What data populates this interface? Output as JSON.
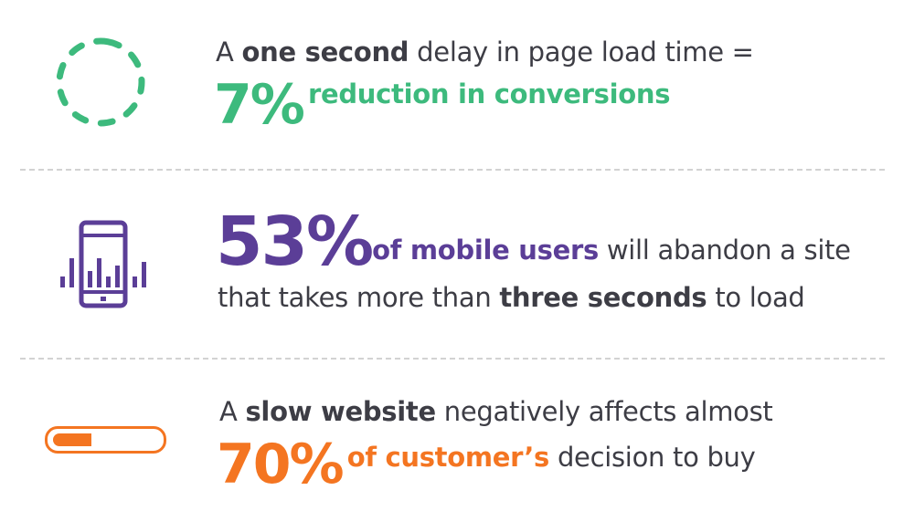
{
  "colors": {
    "green": "#3dba7d",
    "purple": "#5b3e97",
    "orange": "#f47521",
    "text": "#3d3d45",
    "divider": "#d2d2d2"
  },
  "stats": [
    {
      "icon": "dashed-circle-loading-icon",
      "line1": {
        "pre": "A ",
        "bold": "one second",
        "post": " delay in page load time ="
      },
      "line2": {
        "figure": "7%",
        "highlight": "reduction in conversions"
      }
    },
    {
      "icon": "mobile-phone-signal-icon",
      "line1": {
        "figure": "53%",
        "highlight": "of mobile users",
        "post": " will abandon a site"
      },
      "line2": {
        "pre": "that takes more than ",
        "bold": "three seconds",
        "post": " to load"
      }
    },
    {
      "icon": "progress-bar-icon",
      "progress_fill": 0.33,
      "line1": {
        "pre": "A ",
        "bold": "slow website",
        "post": " negatively affects almost"
      },
      "line2": {
        "figure": "70%",
        "highlight": "of customer’s",
        "post": " decision to buy"
      }
    }
  ]
}
